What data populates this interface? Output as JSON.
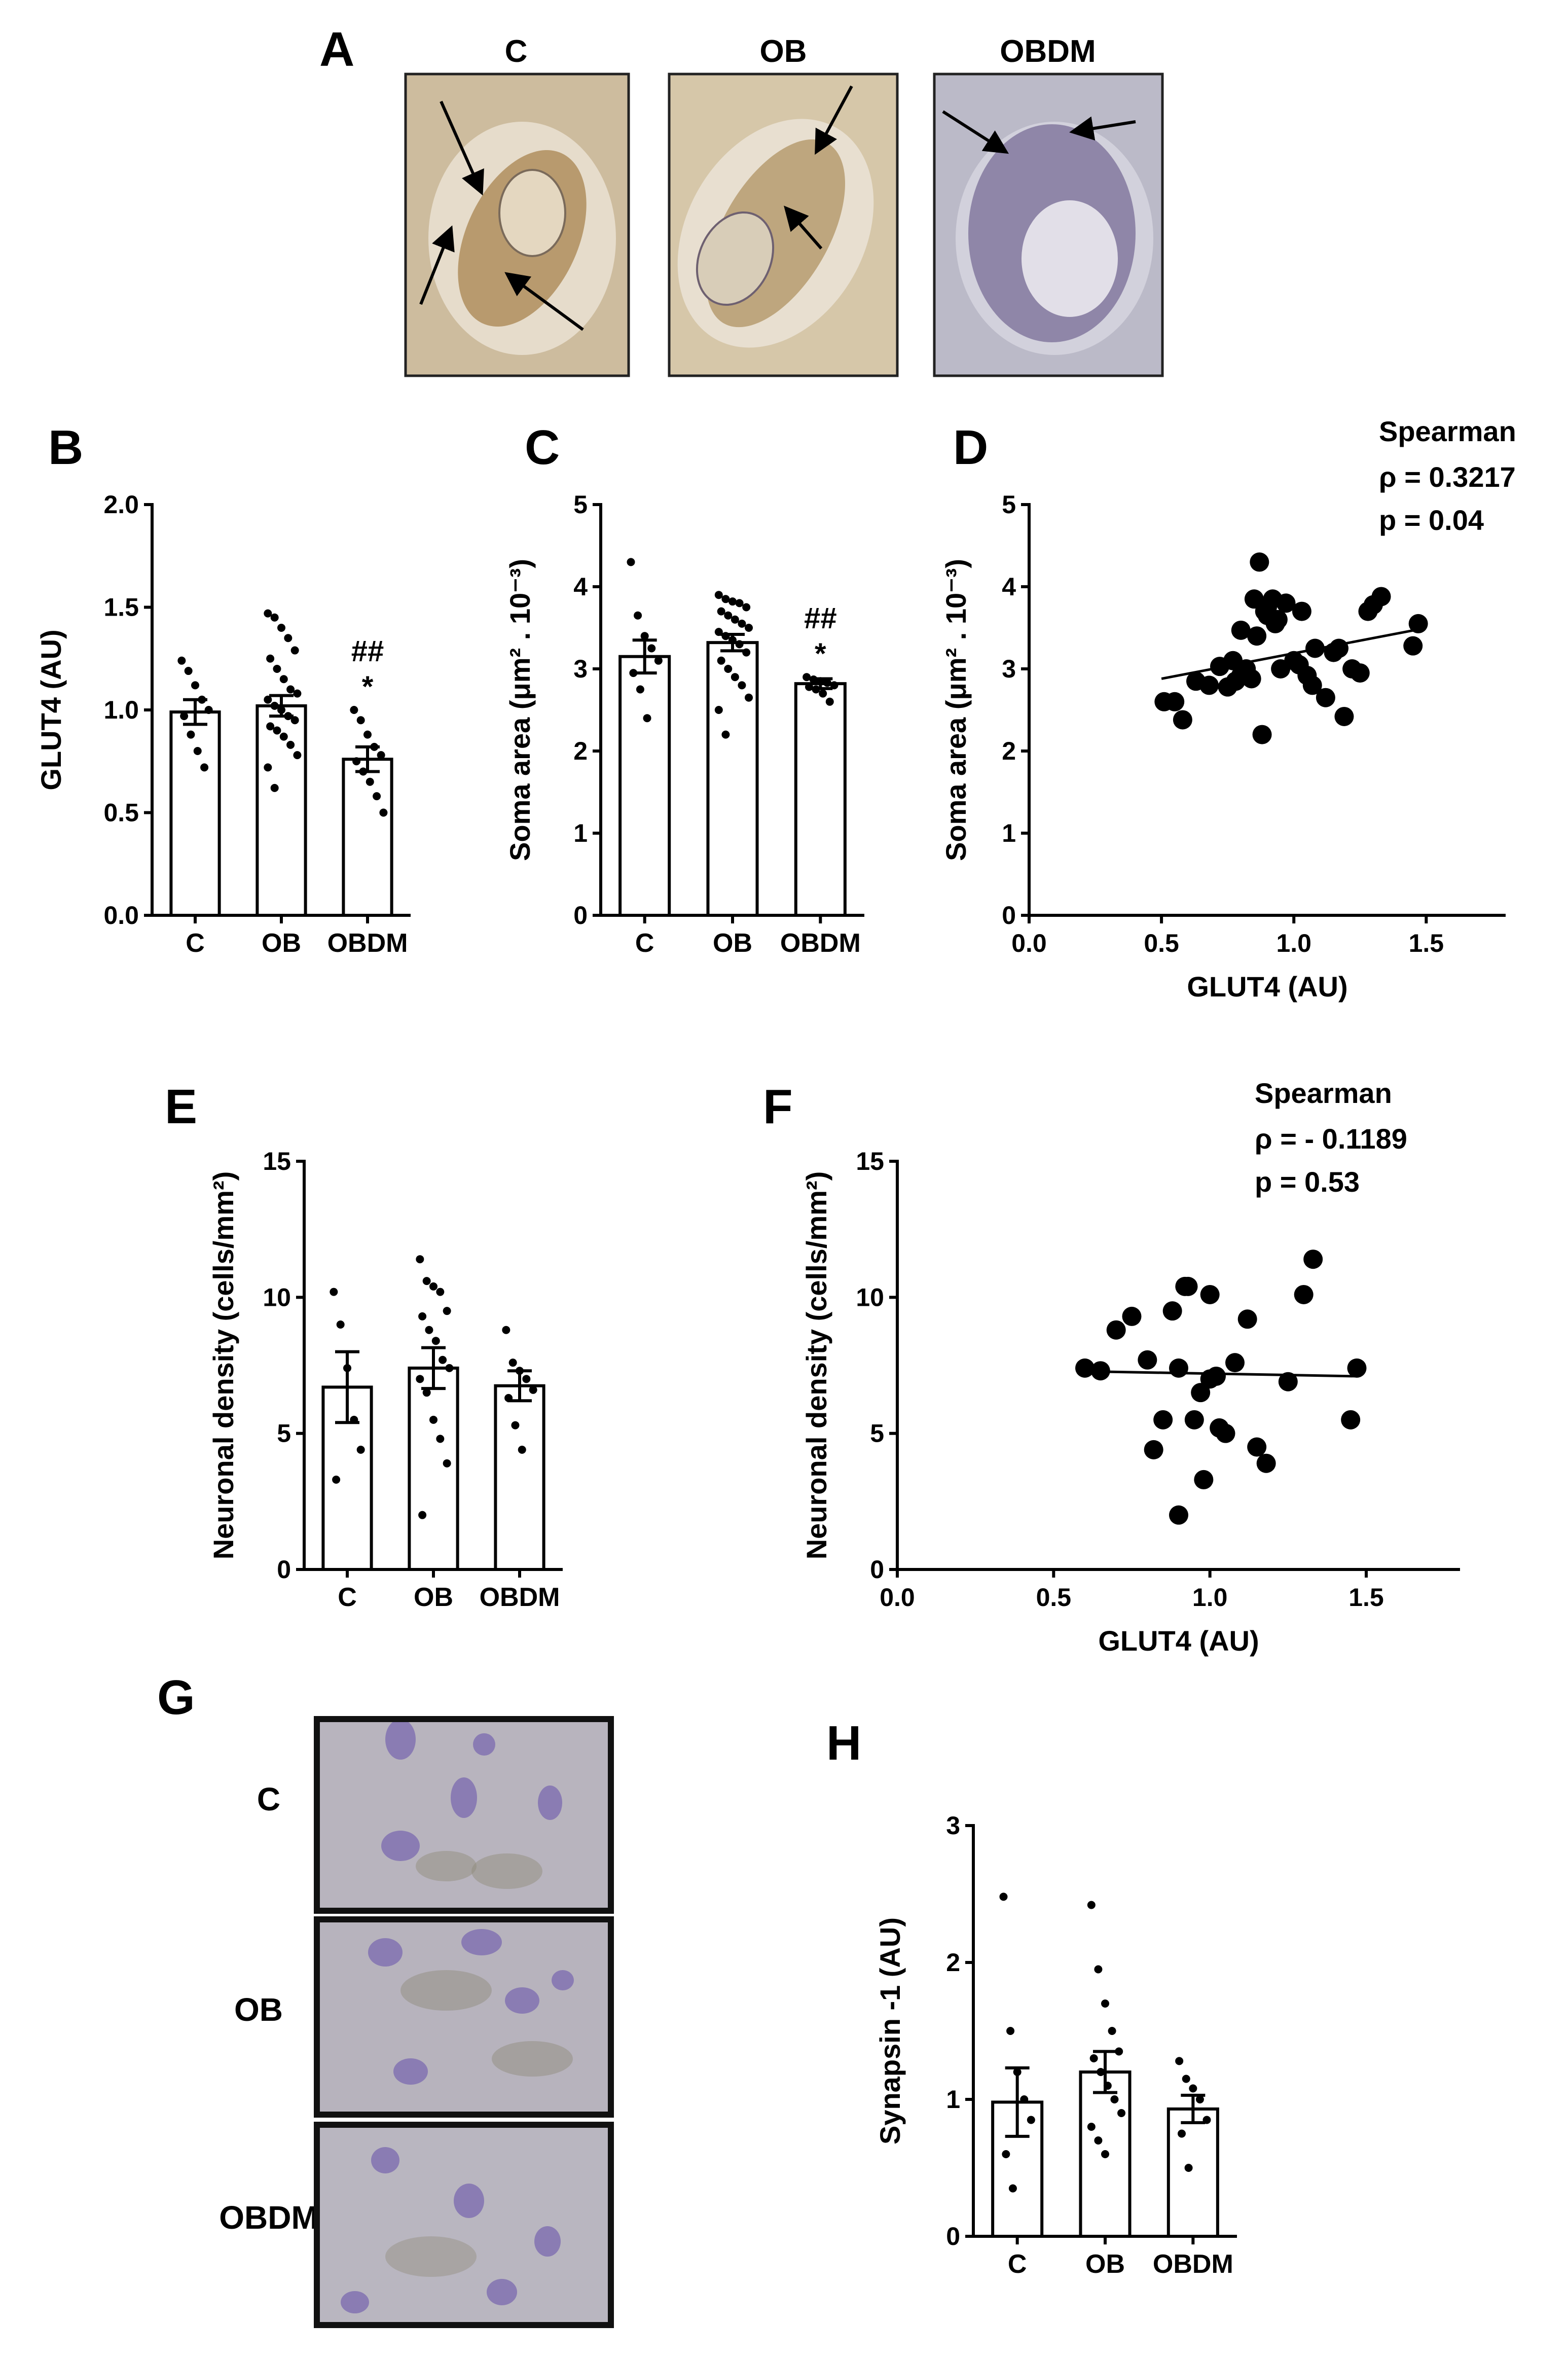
{
  "panel_letters": {
    "a": "A",
    "b": "B",
    "c": "C",
    "d": "D",
    "e": "E",
    "f": "F",
    "g": "G",
    "h": "H"
  },
  "micrographs_a": {
    "labels": [
      "C",
      "OB",
      "OBDM"
    ],
    "colors": {
      "c_bg": "#c9b79a",
      "c_cell": "#b89a6e",
      "c_nucleus": "#e8dcc5",
      "ob_bg": "#d2c2a3",
      "ob_cell": "#bca37a",
      "obdm_bg": "#b9b8c6",
      "obdm_cell": "#8f86a6",
      "obdm_nucleus": "#dcd8e4"
    }
  },
  "micrographs_g": {
    "labels": [
      "C",
      "OB",
      "OBDM"
    ],
    "colors": {
      "bg": "#b6b2bc",
      "stain": "#8a7cb3",
      "speckle": "#8f8a78"
    }
  },
  "chart_data": [
    {
      "id": "B",
      "type": "bar",
      "categories": [
        "C",
        "OB",
        "OBDM"
      ],
      "values": [
        0.99,
        1.02,
        0.76
      ],
      "sem": [
        0.06,
        0.05,
        0.06
      ],
      "points": [
        [
          1.24,
          1.19,
          1.12,
          1.05,
          1.0,
          0.97,
          0.88,
          0.8,
          0.72
        ],
        [
          1.47,
          1.45,
          1.4,
          1.35,
          1.29,
          1.25,
          1.2,
          1.15,
          1.1,
          1.08,
          1.05,
          1.02,
          1.0,
          0.97,
          0.95,
          0.92,
          0.9,
          0.87,
          0.83,
          0.78,
          0.72,
          0.62
        ],
        [
          1.0,
          0.95,
          0.88,
          0.82,
          0.78,
          0.75,
          0.7,
          0.65,
          0.58,
          0.5
        ]
      ],
      "ylabel": "GLUT4 (AU)",
      "ylim": [
        0,
        2.0
      ],
      "yticks": [
        "0.0",
        "0.5",
        "1.0",
        "1.5",
        "2.0"
      ],
      "annotations": [
        {
          "category": "OBDM",
          "hash": "##",
          "star": "*"
        }
      ]
    },
    {
      "id": "C",
      "type": "bar",
      "categories": [
        "C",
        "OB",
        "OBDM"
      ],
      "values": [
        3.15,
        3.32,
        2.82
      ],
      "sem": [
        0.2,
        0.1,
        0.06
      ],
      "points": [
        [
          4.3,
          3.65,
          3.4,
          3.25,
          3.1,
          2.95,
          2.75,
          2.4
        ],
        [
          3.9,
          3.85,
          3.82,
          3.8,
          3.75,
          3.7,
          3.65,
          3.6,
          3.55,
          3.5,
          3.45,
          3.4,
          3.35,
          3.3,
          3.2,
          3.1,
          3.0,
          2.9,
          2.8,
          2.65,
          2.5,
          2.2
        ],
        [
          2.9,
          2.87,
          2.85,
          2.83,
          2.8,
          2.78,
          2.75,
          2.7,
          2.6
        ]
      ],
      "ylabel": "Soma area (μm² . 10⁻³)",
      "ylim": [
        0,
        5
      ],
      "yticks": [
        "0",
        "1",
        "2",
        "3",
        "4",
        "5"
      ],
      "annotations": [
        {
          "category": "OBDM",
          "hash": "##",
          "star": "*"
        }
      ]
    },
    {
      "id": "D",
      "type": "scatter",
      "x": [
        0.51,
        0.55,
        0.58,
        0.63,
        0.68,
        0.72,
        0.75,
        0.77,
        0.78,
        0.8,
        0.8,
        0.82,
        0.84,
        0.85,
        0.86,
        0.87,
        0.88,
        0.89,
        0.9,
        0.9,
        0.92,
        0.93,
        0.94,
        0.95,
        0.97,
        1.0,
        1.02,
        1.03,
        1.05,
        1.07,
        1.08,
        1.12,
        1.15,
        1.17,
        1.19,
        1.22,
        1.25,
        1.28,
        1.3,
        1.33,
        1.45,
        1.47
      ],
      "y": [
        2.6,
        2.6,
        2.38,
        2.85,
        2.8,
        3.03,
        2.78,
        3.1,
        2.85,
        2.92,
        3.47,
        3.0,
        2.88,
        3.85,
        3.4,
        4.3,
        2.2,
        3.7,
        3.75,
        3.65,
        3.85,
        3.55,
        3.6,
        3.0,
        3.8,
        3.1,
        3.05,
        3.7,
        2.92,
        2.8,
        3.25,
        2.65,
        3.2,
        3.25,
        2.42,
        3.0,
        2.95,
        3.7,
        3.78,
        3.88,
        3.28,
        3.55
      ],
      "trend": {
        "x": [
          0.5,
          1.47
        ],
        "y": [
          2.88,
          3.48
        ]
      },
      "xlabel": "GLUT4 (AU)",
      "ylabel": "Soma area (μm² . 10⁻³)",
      "xlim": [
        0.0,
        1.8
      ],
      "ylim": [
        0,
        5
      ],
      "xticks": [
        "0.0",
        "0.5",
        "1.0",
        "1.5"
      ],
      "yticks": [
        "0",
        "1",
        "2",
        "3",
        "4",
        "5"
      ],
      "stats": {
        "method": "Spearman",
        "rho": "ρ = 0.3217",
        "p": "p = 0.04"
      }
    },
    {
      "id": "E",
      "type": "bar",
      "categories": [
        "C",
        "OB",
        "OBDM"
      ],
      "values": [
        6.7,
        7.4,
        6.75
      ],
      "sem": [
        1.3,
        0.75,
        0.55
      ],
      "points": [
        [
          10.2,
          9.0,
          7.4,
          5.5,
          4.4,
          3.3
        ],
        [
          11.4,
          10.6,
          10.4,
          10.2,
          9.5,
          9.3,
          8.8,
          8.4,
          7.7,
          7.4,
          7.0,
          6.5,
          5.5,
          4.8,
          3.9,
          2.0
        ],
        [
          8.8,
          7.6,
          7.3,
          7.0,
          6.6,
          6.3,
          5.3,
          4.4
        ]
      ],
      "ylabel": "Neuronal density (cells/mm²)",
      "ylim": [
        0,
        15
      ],
      "yticks": [
        "0",
        "5",
        "10",
        "15"
      ]
    },
    {
      "id": "F",
      "type": "scatter",
      "x": [
        0.6,
        0.65,
        0.7,
        0.75,
        0.8,
        0.82,
        0.85,
        0.88,
        0.9,
        0.9,
        0.92,
        0.93,
        0.95,
        0.97,
        0.98,
        1.0,
        1.0,
        1.02,
        1.03,
        1.05,
        1.08,
        1.12,
        1.15,
        1.18,
        1.25,
        1.3,
        1.33,
        1.45,
        1.47
      ],
      "y": [
        7.4,
        7.3,
        8.8,
        9.3,
        7.7,
        4.4,
        5.5,
        9.5,
        2.0,
        7.4,
        10.4,
        10.4,
        5.5,
        6.5,
        3.3,
        10.1,
        7.0,
        7.1,
        5.2,
        5.0,
        7.6,
        9.2,
        4.5,
        3.9,
        6.9,
        10.1,
        11.4,
        5.5,
        7.4
      ],
      "trend": {
        "x": [
          0.6,
          1.47
        ],
        "y": [
          7.28,
          7.1
        ]
      },
      "xlabel": "GLUT4 (AU)",
      "ylabel": "Neuronal density (cells/mm²)",
      "xlim": [
        0.0,
        1.8
      ],
      "ylim": [
        0,
        15
      ],
      "xticks": [
        "0.0",
        "0.5",
        "1.0",
        "1.5"
      ],
      "yticks": [
        "0",
        "5",
        "10",
        "15"
      ],
      "stats": {
        "method": "Spearman",
        "rho": "ρ = - 0.1189",
        "p": "p = 0.53"
      }
    },
    {
      "id": "H",
      "type": "bar",
      "categories": [
        "C",
        "OB",
        "OBDM"
      ],
      "values": [
        0.98,
        1.2,
        0.93
      ],
      "sem": [
        0.25,
        0.15,
        0.1
      ],
      "points": [
        [
          2.48,
          1.5,
          1.2,
          1.0,
          0.85,
          0.6,
          0.35
        ],
        [
          2.42,
          1.95,
          1.7,
          1.5,
          1.35,
          1.3,
          1.2,
          1.1,
          1.0,
          0.9,
          0.8,
          0.7,
          0.6
        ],
        [
          1.28,
          1.15,
          1.08,
          1.0,
          0.85,
          0.75,
          0.5
        ]
      ],
      "ylabel": "Synapsin -1 (AU)",
      "ylim": [
        0,
        3
      ],
      "yticks": [
        "0",
        "1",
        "2",
        "3"
      ]
    }
  ]
}
